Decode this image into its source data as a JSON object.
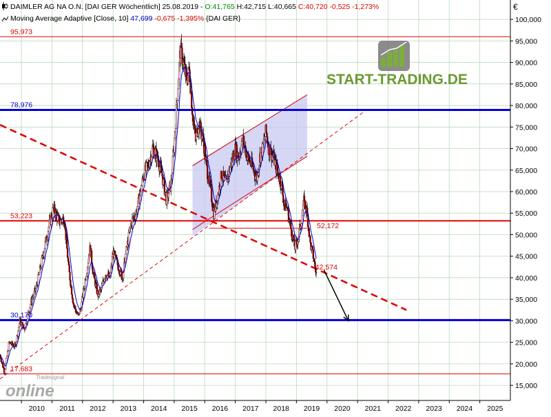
{
  "header": {
    "line1": {
      "title": "DAIMLER AG NA O.N. [DAI GER  Wöchentlich] 25.08.2019 - ",
      "open": "O:41,765",
      "high_low": " H:42,715  L:40,665 ",
      "close": "C:40,720 -0,525 -1,273%"
    },
    "line2": {
      "indicator": "Moving Average Adaptive [Close, 10] ",
      "value": "47,699",
      "change": " -0,675 -1,395%",
      "suffix": " {DAI GER}"
    },
    "currency": "€"
  },
  "logo": {
    "text_main": "START-TRADING.DE",
    "watermark_small": "Tradesignal",
    "watermark_large": "online"
  },
  "colors": {
    "candle_body": "#7a0000",
    "candle_wick": "#000000",
    "ma_line": "#0000cc",
    "support_blue": "#0000dd",
    "resistance_red": "#dd0000",
    "channel_fill": "#c8c8f2",
    "grid": "#b8d8b8",
    "label_red": "#dd0000",
    "label_blue": "#0000cc",
    "green": "#008800",
    "logo_green": "#6a9a30",
    "logo_gray": "#555555"
  },
  "chart_data": {
    "type": "candlestick",
    "title": "DAIMLER AG NA O.N. [DAI GER  Wöchentlich]",
    "x_axis": {
      "type": "time",
      "range": [
        2009.3,
        2026.0
      ],
      "tick_labels": [
        "2010",
        "2011",
        "2012",
        "2013",
        "2014",
        "2015",
        "2016",
        "2017",
        "2018",
        "2019",
        "2020",
        "2021",
        "2022",
        "2023",
        "2024",
        "2025"
      ]
    },
    "y_axis": {
      "position": "right",
      "range": [
        11.5,
        104.5
      ],
      "tick_values": [
        15,
        20,
        25,
        30,
        35,
        40,
        45,
        50,
        55,
        60,
        65,
        70,
        75,
        80,
        85,
        90,
        95,
        100
      ],
      "tick_labels": [
        "15,000",
        "20,000",
        "25,000",
        "30,000",
        "35,000",
        "40,000",
        "45,000",
        "50,000",
        "55,000",
        "60,000",
        "65,000",
        "70,000",
        "75,000",
        "80,000",
        "85,000",
        "90,000",
        "95,000",
        "100,000"
      ]
    },
    "grid": true,
    "price_path": [
      [
        2009.3,
        22
      ],
      [
        2009.45,
        18
      ],
      [
        2009.6,
        25
      ],
      [
        2009.8,
        24
      ],
      [
        2009.95,
        30
      ],
      [
        2010.1,
        28
      ],
      [
        2010.3,
        34
      ],
      [
        2010.5,
        38
      ],
      [
        2010.7,
        45
      ],
      [
        2010.9,
        52
      ],
      [
        2011.05,
        56
      ],
      [
        2011.25,
        53
      ],
      [
        2011.4,
        54
      ],
      [
        2011.55,
        42
      ],
      [
        2011.7,
        34
      ],
      [
        2011.85,
        31
      ],
      [
        2011.95,
        33
      ],
      [
        2012.1,
        40
      ],
      [
        2012.25,
        47
      ],
      [
        2012.35,
        41
      ],
      [
        2012.5,
        36
      ],
      [
        2012.6,
        37
      ],
      [
        2012.75,
        41
      ],
      [
        2012.9,
        40
      ],
      [
        2013.0,
        46
      ],
      [
        2013.15,
        43
      ],
      [
        2013.3,
        40
      ],
      [
        2013.45,
        47
      ],
      [
        2013.6,
        53
      ],
      [
        2013.75,
        55
      ],
      [
        2013.9,
        60
      ],
      [
        2014.0,
        64
      ],
      [
        2014.15,
        66
      ],
      [
        2014.3,
        70
      ],
      [
        2014.45,
        68
      ],
      [
        2014.6,
        64
      ],
      [
        2014.75,
        58
      ],
      [
        2014.9,
        62
      ],
      [
        2015.0,
        71
      ],
      [
        2015.1,
        82
      ],
      [
        2015.2,
        93
      ],
      [
        2015.3,
        90
      ],
      [
        2015.4,
        86
      ],
      [
        2015.5,
        88
      ],
      [
        2015.6,
        78
      ],
      [
        2015.7,
        72
      ],
      [
        2015.8,
        76
      ],
      [
        2015.95,
        72
      ],
      [
        2016.05,
        66
      ],
      [
        2016.15,
        62
      ],
      [
        2016.3,
        55
      ],
      [
        2016.4,
        58
      ],
      [
        2016.55,
        64
      ],
      [
        2016.7,
        62
      ],
      [
        2016.85,
        66
      ],
      [
        2017.0,
        70
      ],
      [
        2017.1,
        68
      ],
      [
        2017.25,
        72
      ],
      [
        2017.4,
        68
      ],
      [
        2017.55,
        66
      ],
      [
        2017.7,
        63
      ],
      [
        2017.8,
        68
      ],
      [
        2017.9,
        70
      ],
      [
        2018.0,
        74
      ],
      [
        2018.1,
        70
      ],
      [
        2018.25,
        68
      ],
      [
        2018.4,
        64
      ],
      [
        2018.5,
        62
      ],
      [
        2018.6,
        57
      ],
      [
        2018.7,
        56
      ],
      [
        2018.8,
        52
      ],
      [
        2018.95,
        47
      ],
      [
        2019.05,
        49
      ],
      [
        2019.15,
        53
      ],
      [
        2019.25,
        58
      ],
      [
        2019.35,
        55
      ],
      [
        2019.45,
        48
      ],
      [
        2019.55,
        45
      ],
      [
        2019.65,
        40.7
      ]
    ],
    "moving_average": {
      "name": "Moving Average Adaptive [Close, 10]",
      "last_value": 47.699,
      "change": -0.675,
      "change_pct": -1.395
    },
    "last_bar": {
      "date": "25.08.2019",
      "open": 41.765,
      "high": 42.715,
      "low": 40.665,
      "close": 40.72,
      "change": -0.525,
      "change_pct": -1.273
    },
    "horizontal_levels": [
      {
        "value": 95.973,
        "label": "95,973",
        "style": "thin-red"
      },
      {
        "value": 78.976,
        "label": "78,976",
        "style": "thick-blue"
      },
      {
        "value": 53.223,
        "label": "53,223",
        "style": "thick-red"
      },
      {
        "value": 30.17,
        "label": "30,170",
        "style": "thick-blue"
      },
      {
        "value": 17.683,
        "label": "17,683",
        "style": "thin-red"
      }
    ],
    "annotations": [
      {
        "text": "52,172",
        "x": 2019.6,
        "y": 52.172
      },
      {
        "text": "42,574",
        "x": 2019.55,
        "y": 42.574
      }
    ],
    "trendlines": [
      {
        "style": "thick-red-dashed",
        "from": [
          2009.3,
          75.5
        ],
        "to": [
          2022.6,
          32.5
        ]
      },
      {
        "style": "thin-red-dashed",
        "from": [
          2009.3,
          16.5
        ],
        "to": [
          2021.2,
          78.5
        ]
      },
      {
        "style": "thin-red",
        "from": [
          2016.15,
          51.5
        ],
        "to": [
          2019.35,
          51.5
        ]
      }
    ],
    "channel": {
      "x_range": [
        2015.6,
        2019.35
      ],
      "lower": [
        [
          2015.6,
          51.2
        ],
        [
          2019.35,
          68.2
        ]
      ],
      "upper": [
        [
          2015.6,
          66.0
        ],
        [
          2019.35,
          82.5
        ]
      ]
    },
    "projection_arrow": {
      "from": [
        2019.9,
        41.8
      ],
      "to": [
        2020.7,
        30.0
      ]
    }
  }
}
